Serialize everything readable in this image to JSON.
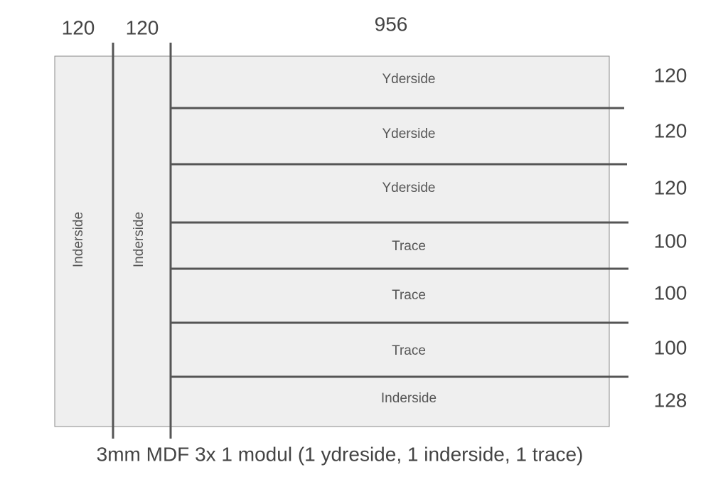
{
  "columns": [
    {
      "width": 120,
      "label": "Inderside"
    },
    {
      "width": 120,
      "label": "Inderside"
    }
  ],
  "main_width": 956,
  "rows": [
    {
      "label": "Yderside",
      "height": 120
    },
    {
      "label": "Yderside",
      "height": 120
    },
    {
      "label": "Yderside",
      "height": 120
    },
    {
      "label": "Trace",
      "height": 100
    },
    {
      "label": "Trace",
      "height": 100
    },
    {
      "label": "Trace",
      "height": 100
    },
    {
      "label": "Inderside",
      "height": 128
    }
  ],
  "caption": "3mm MDF 3x 1 modul (1 ydreside, 1 inderside, 1 trace)"
}
